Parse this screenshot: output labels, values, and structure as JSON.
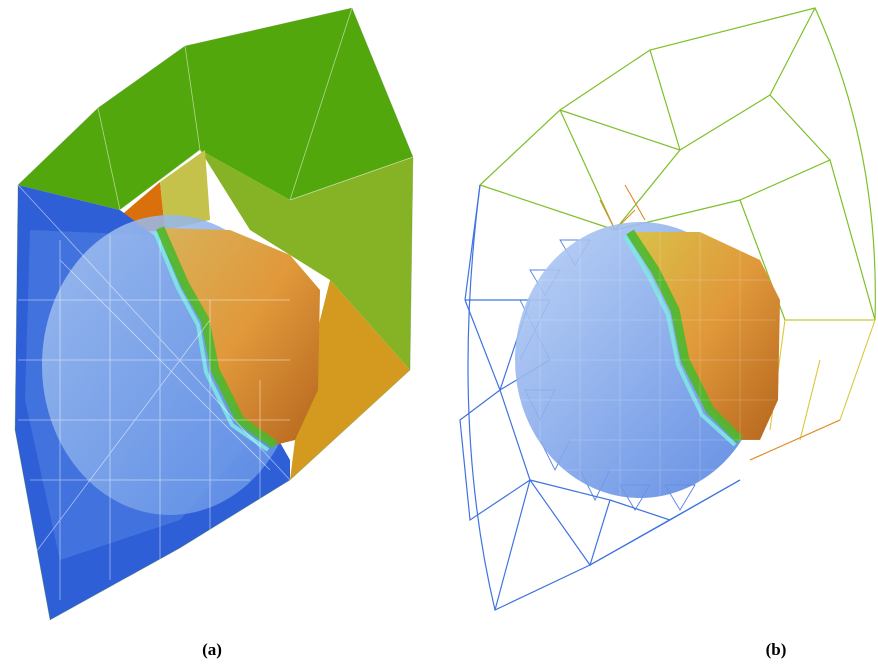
{
  "figure": {
    "panel_a": {
      "caption": "(a)"
    },
    "panel_b": {
      "caption": "(b)"
    }
  },
  "colors": {
    "ocean_blue": "#2f5fd6",
    "land_green": "#52a70c",
    "land_olive": "#8fb52a",
    "land_orange": "#d98f1e",
    "highland_brown": "#b5651d",
    "coast_cyan": "#7fe6e6",
    "wire_blue": "#3f73e0",
    "wire_green": "#7fbf2a",
    "wire_yellow": "#d9c93a",
    "wire_orange": "#e08a2a"
  }
}
